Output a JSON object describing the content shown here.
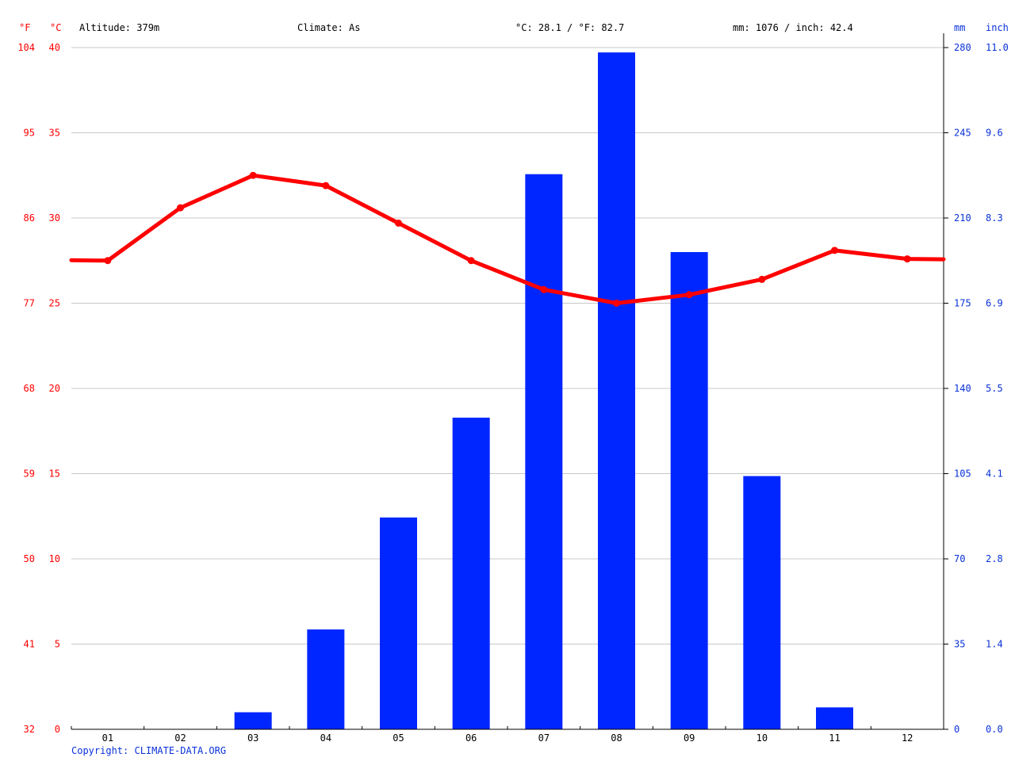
{
  "header": {
    "unit_f": "°F",
    "unit_c": "°C",
    "altitude": "Altitude: 379m",
    "climate": "Climate: As",
    "avg_temp": "°C: 28.1 / °F: 82.7",
    "precip_total": "mm: 1076 / inch: 42.4",
    "unit_mm": "mm",
    "unit_inch": "inch"
  },
  "footer": {
    "copyright": "Copyright: CLIMATE-DATA.ORG"
  },
  "colors": {
    "temperature": "#ff0000",
    "precipitation": "#0026ff",
    "grid": "#c8c8c8",
    "axis_left": "#ff0000",
    "axis_right": "#0a32d8"
  },
  "chart_data": {
    "type": "bar",
    "categories": [
      "01",
      "02",
      "03",
      "04",
      "05",
      "06",
      "07",
      "08",
      "09",
      "10",
      "11",
      "12"
    ],
    "series": [
      {
        "values": [
          0,
          0,
          7,
          41,
          87,
          128,
          228,
          278,
          196,
          104,
          9,
          0
        ],
        "axis": "right",
        "type": "bar"
      },
      {
        "values": [
          27.5,
          30.6,
          32.5,
          31.9,
          29.7,
          27.5,
          25.8,
          25.0,
          25.5,
          26.4,
          28.1,
          27.6
        ],
        "axis": "left",
        "type": "line"
      }
    ],
    "y_left": {
      "lim": [
        0,
        40
      ],
      "ticks_c": [
        "0",
        "5",
        "10",
        "15",
        "20",
        "25",
        "30",
        "35",
        "40"
      ],
      "ticks_f": [
        "32",
        "41",
        "50",
        "59",
        "68",
        "77",
        "86",
        "95",
        "104"
      ]
    },
    "y_right": {
      "lim": [
        0,
        280
      ],
      "ticks_mm": [
        "0",
        "35",
        "70",
        "105",
        "140",
        "175",
        "210",
        "245",
        "280"
      ],
      "ticks_inch": [
        "0.0",
        "1.4",
        "2.8",
        "4.1",
        "5.5",
        "6.9",
        "8.3",
        "9.6",
        "11.0"
      ]
    },
    "grid": true,
    "legend": "none"
  }
}
